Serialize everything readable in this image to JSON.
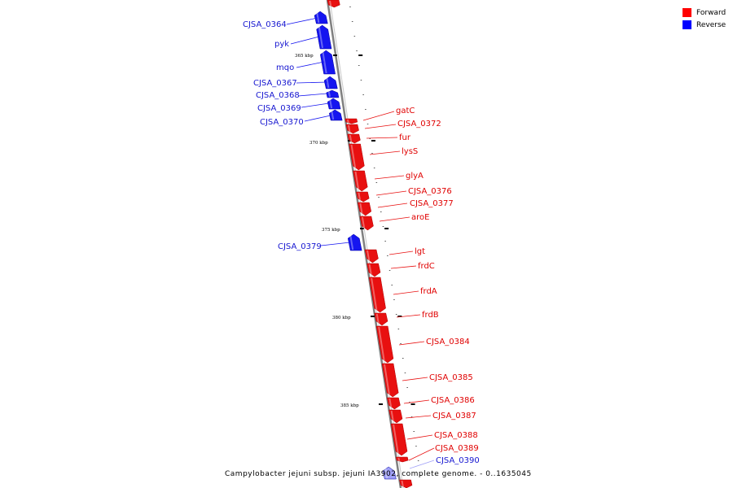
{
  "legend": [
    {
      "label": "Forward",
      "color": "#ff0000"
    },
    {
      "label": "Reverse",
      "color": "#0000ff"
    }
  ],
  "caption": "Campylobacter jejuni subsp. jejuni IA3902, complete genome. - 0..1635045",
  "colors": {
    "forward": "#e81010",
    "reverse": "#1515f0",
    "reverse_faded": "#a0a0f8",
    "axis": "#808080"
  },
  "ticks": [
    {
      "label": "365 kbp",
      "kbp": 365
    },
    {
      "label": "370 kbp",
      "kbp": 370
    },
    {
      "label": "375 kbp",
      "kbp": 375
    },
    {
      "label": "380 kbp",
      "kbp": 380
    },
    {
      "label": "385 kbp",
      "kbp": 385
    }
  ],
  "genes": [
    {
      "name": "",
      "strand": "forward"
    },
    {
      "name": "CJSA_0364",
      "strand": "reverse"
    },
    {
      "name": "pyk",
      "strand": "reverse"
    },
    {
      "name": "mqo",
      "strand": "reverse"
    },
    {
      "name": "CJSA_0367",
      "strand": "reverse"
    },
    {
      "name": "CJSA_0368",
      "strand": "reverse"
    },
    {
      "name": "CJSA_0369",
      "strand": "reverse"
    },
    {
      "name": "CJSA_0370",
      "strand": "reverse"
    },
    {
      "name": "gatC",
      "strand": "forward"
    },
    {
      "name": "CJSA_0372",
      "strand": "forward"
    },
    {
      "name": "fur",
      "strand": "forward"
    },
    {
      "name": "lysS",
      "strand": "forward"
    },
    {
      "name": "glyA",
      "strand": "forward"
    },
    {
      "name": "CJSA_0376",
      "strand": "forward"
    },
    {
      "name": "CJSA_0377",
      "strand": "forward"
    },
    {
      "name": "aroE",
      "strand": "forward"
    },
    {
      "name": "CJSA_0379",
      "strand": "reverse"
    },
    {
      "name": "lgt",
      "strand": "forward"
    },
    {
      "name": "frdC",
      "strand": "forward"
    },
    {
      "name": "frdA",
      "strand": "forward"
    },
    {
      "name": "frdB",
      "strand": "forward"
    },
    {
      "name": "CJSA_0384",
      "strand": "forward"
    },
    {
      "name": "CJSA_0385",
      "strand": "forward"
    },
    {
      "name": "CJSA_0386",
      "strand": "forward"
    },
    {
      "name": "CJSA_0387",
      "strand": "forward"
    },
    {
      "name": "CJSA_0388",
      "strand": "forward"
    },
    {
      "name": "CJSA_0389",
      "strand": "forward"
    },
    {
      "name": "CJSA_0390",
      "strand": "reverse"
    },
    {
      "name": "",
      "strand": "forward"
    }
  ]
}
